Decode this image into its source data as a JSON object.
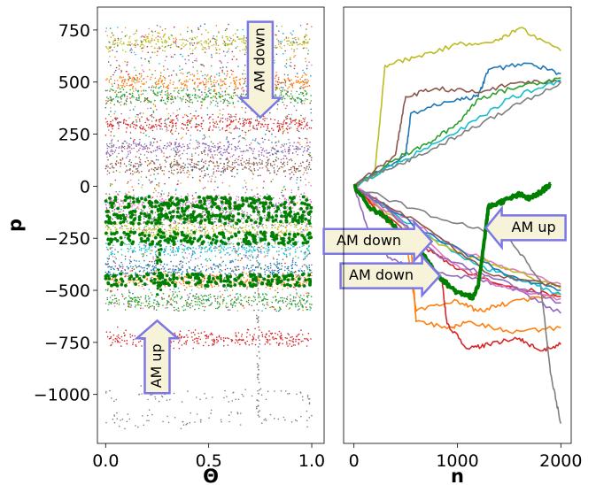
{
  "chart_data": [
    {
      "type": "scatter",
      "xlabel": "Θ",
      "ylabel": "p",
      "xlim": [
        -0.04,
        1.06
      ],
      "ylim": [
        -1235,
        860
      ],
      "xticks": [
        "0.0",
        "0.5",
        "1.0"
      ],
      "xtick_values": [
        0.0,
        0.5,
        1.0
      ],
      "yticks": [
        "750",
        "500",
        "250",
        "0",
        "−250",
        "−500",
        "−750",
        "−1000"
      ],
      "ytick_values": [
        750,
        500,
        250,
        0,
        -250,
        -500,
        -750,
        -1000
      ],
      "band_centers_p": [
        690,
        500,
        430,
        300,
        180,
        100,
        -80,
        -150,
        -210,
        -300,
        -400,
        -450,
        -550,
        -730,
        -1010,
        -1120
      ],
      "highlighted_band_p": [
        -80,
        -150,
        -250,
        -450
      ],
      "annotations": [
        {
          "text": "AM down",
          "x": 0.75,
          "p": 560,
          "direction": "down"
        },
        {
          "text": "AM up",
          "x": 0.25,
          "p": -820,
          "direction": "up"
        }
      ]
    },
    {
      "type": "line",
      "xlabel": "n",
      "ylabel": "",
      "xlim": [
        -100,
        2100
      ],
      "ylim": [
        -1235,
        860
      ],
      "xticks": [
        "0",
        "1000",
        "2000"
      ],
      "xtick_values": [
        0,
        1000,
        2000
      ],
      "series": [
        {
          "color": "#bcbd22",
          "points": [
            [
              0,
              0
            ],
            [
              200,
              50
            ],
            [
              300,
              580
            ],
            [
              600,
              620
            ],
            [
              1000,
              680
            ],
            [
              1400,
              700
            ],
            [
              1600,
              760
            ],
            [
              2000,
              650
            ]
          ]
        },
        {
          "color": "#1f77b4",
          "points": [
            [
              0,
              0
            ],
            [
              500,
              150
            ],
            [
              550,
              350
            ],
            [
              1000,
              420
            ],
            [
              1200,
              430
            ],
            [
              1300,
              560
            ],
            [
              1700,
              590
            ],
            [
              2000,
              540
            ]
          ]
        },
        {
          "color": "#8c564b",
          "points": [
            [
              0,
              0
            ],
            [
              400,
              150
            ],
            [
              500,
              430
            ],
            [
              800,
              470
            ],
            [
              1200,
              450
            ],
            [
              1600,
              500
            ],
            [
              2000,
              500
            ]
          ]
        },
        {
          "color": "#2ca02c",
          "points": [
            [
              0,
              0
            ],
            [
              400,
              130
            ],
            [
              700,
              200
            ],
            [
              1000,
              300
            ],
            [
              1200,
              420
            ],
            [
              1600,
              480
            ],
            [
              2000,
              520
            ]
          ]
        },
        {
          "color": "#17becf",
          "points": [
            [
              0,
              0
            ],
            [
              500,
              130
            ],
            [
              1000,
              260
            ],
            [
              1500,
              420
            ],
            [
              2000,
              510
            ]
          ]
        },
        {
          "color": "#7f7f7f",
          "points": [
            [
              0,
              0
            ],
            [
              300,
              80
            ],
            [
              600,
              140
            ],
            [
              1000,
              240
            ],
            [
              1500,
              370
            ],
            [
              2000,
              500
            ]
          ]
        },
        {
          "color": "#e377c2",
          "points": [
            [
              0,
              0
            ],
            [
              500,
              -150
            ],
            [
              1000,
              -300
            ],
            [
              1500,
              -400
            ],
            [
              2000,
              -470
            ]
          ]
        },
        {
          "color": "#9467bd",
          "points": [
            [
              0,
              0
            ],
            [
              200,
              -300
            ],
            [
              500,
              -380
            ],
            [
              1000,
              -430
            ],
            [
              1500,
              -480
            ],
            [
              2000,
              -610
            ]
          ]
        },
        {
          "color": "#ff7f0e",
          "points": [
            [
              0,
              0
            ],
            [
              300,
              -150
            ],
            [
              500,
              -250
            ],
            [
              600,
              -600
            ],
            [
              1000,
              -550
            ],
            [
              1200,
              -600
            ],
            [
              1500,
              -560
            ],
            [
              2000,
              -520
            ]
          ]
        },
        {
          "color": "#ff7f0e",
          "points": [
            [
              0,
              0
            ],
            [
              400,
              -200
            ],
            [
              550,
              -280
            ],
            [
              600,
              -650
            ],
            [
              950,
              -680
            ],
            [
              1100,
              -650
            ],
            [
              1500,
              -700
            ],
            [
              2000,
              -680
            ]
          ]
        },
        {
          "color": "#d62728",
          "points": [
            [
              0,
              0
            ],
            [
              600,
              -300
            ],
            [
              850,
              -450
            ],
            [
              900,
              -660
            ],
            [
              1100,
              -780
            ],
            [
              1300,
              -760
            ],
            [
              1600,
              -730
            ],
            [
              1800,
              -790
            ],
            [
              2000,
              -760
            ]
          ]
        },
        {
          "color": "#7f7f7f",
          "points": [
            [
              0,
              0
            ],
            [
              800,
              -150
            ],
            [
              1500,
              -250
            ],
            [
              1800,
              -450
            ],
            [
              1900,
              -900
            ],
            [
              2000,
              -1140
            ]
          ]
        },
        {
          "color": "#d62728",
          "points": [
            [
              0,
              0
            ],
            [
              700,
              -300
            ],
            [
              1000,
              -400
            ],
            [
              1500,
              -480
            ],
            [
              2000,
              -530
            ]
          ]
        },
        {
          "color": "#17becf",
          "points": [
            [
              0,
              0
            ],
            [
              600,
              -200
            ],
            [
              1200,
              -380
            ],
            [
              1600,
              -450
            ],
            [
              2000,
              -520
            ]
          ]
        },
        {
          "color": "#bcbd22",
          "points": [
            [
              0,
              0
            ],
            [
              500,
              -200
            ],
            [
              1000,
              -320
            ],
            [
              1500,
              -400
            ],
            [
              2000,
              -490
            ]
          ]
        },
        {
          "color": "#1f77b4",
          "points": [
            [
              0,
              0
            ],
            [
              800,
              -250
            ],
            [
              1500,
              -430
            ],
            [
              2000,
              -500
            ]
          ]
        },
        {
          "color": "#8c564b",
          "points": [
            [
              0,
              0
            ],
            [
              700,
              -200
            ],
            [
              1300,
              -420
            ],
            [
              2000,
              -480
            ]
          ]
        },
        {
          "color": "#e377c2",
          "points": [
            [
              0,
              0
            ],
            [
              1000,
              -380
            ],
            [
              1400,
              -480
            ],
            [
              2000,
              -540
            ]
          ]
        },
        {
          "color": "#9467bd",
          "points": [
            [
              0,
              0
            ],
            [
              300,
              -100
            ],
            [
              800,
              -330
            ],
            [
              1300,
              -430
            ],
            [
              2000,
              -560
            ]
          ]
        },
        {
          "color": "#008000",
          "thick": true,
          "points": [
            [
              0,
              0
            ],
            [
              150,
              -100
            ],
            [
              300,
              -150
            ],
            [
              450,
              -220
            ],
            [
              600,
              -260
            ],
            [
              700,
              -350
            ],
            [
              800,
              -420
            ],
            [
              900,
              -470
            ],
            [
              1000,
              -510
            ],
            [
              1100,
              -520
            ],
            [
              1150,
              -540
            ],
            [
              1200,
              -480
            ],
            [
              1250,
              -300
            ],
            [
              1300,
              -100
            ],
            [
              1400,
              -80
            ],
            [
              1500,
              -60
            ],
            [
              1600,
              -40
            ],
            [
              1700,
              -60
            ],
            [
              1800,
              -30
            ],
            [
              1900,
              10
            ]
          ]
        }
      ],
      "annotations": [
        {
          "text": "AM down",
          "x": 230,
          "p": -265,
          "direction": "right"
        },
        {
          "text": "AM down",
          "x": 350,
          "p": -430,
          "direction": "right"
        },
        {
          "text": "AM up",
          "x": 1660,
          "p": -200,
          "direction": "left"
        }
      ]
    }
  ]
}
